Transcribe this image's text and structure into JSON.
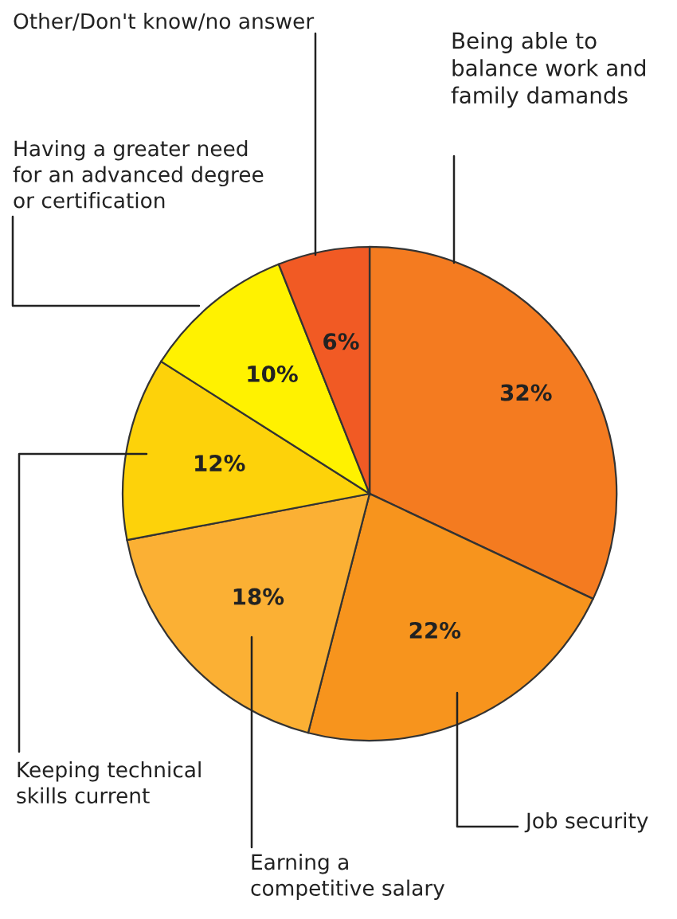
{
  "chart_data": {
    "type": "pie",
    "categories": [
      "Being able to\nbalance work and\nfamily damands",
      "Job security",
      "Earning a\ncompetitive salary",
      "Keeping technical\nskills current",
      "Having a greater need\nfor an advanced degree\nor certification",
      "Other/Don't know/no answer"
    ],
    "values": [
      32,
      22,
      18,
      12,
      10,
      6
    ],
    "colors": [
      "#f47b20",
      "#f7941d",
      "#fbb034",
      "#fdd20a",
      "#fff200",
      "#f15a24"
    ],
    "value_labels": [
      "32%",
      "22%",
      "18%",
      "12%",
      "10%",
      "6%"
    ]
  }
}
